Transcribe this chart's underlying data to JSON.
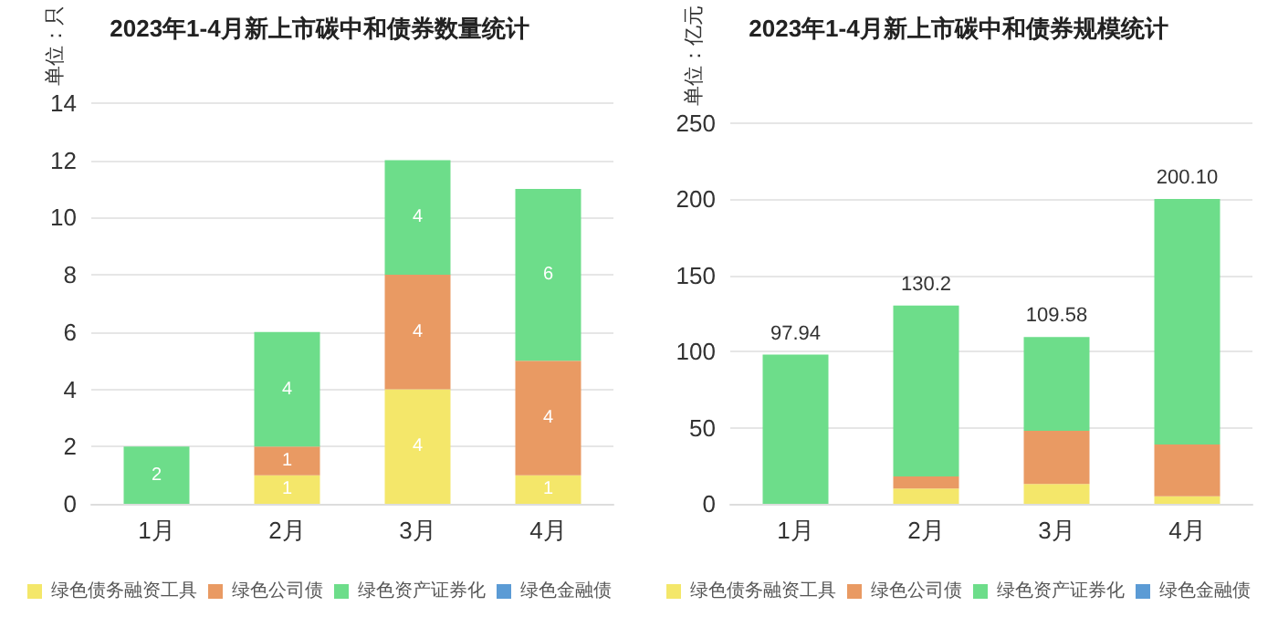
{
  "chart_data": [
    {
      "type": "bar",
      "title": "2023年1-4月新上市碳中和债券数量统计",
      "ylabel": "单位：只",
      "categories": [
        "1月",
        "2月",
        "3月",
        "4月"
      ],
      "stacked": true,
      "ylim": [
        0,
        14
      ],
      "yticks": [
        0,
        2,
        4,
        6,
        8,
        10,
        12,
        14
      ],
      "grid": "y",
      "legend": "bottom",
      "series": [
        {
          "name": "绿色债务融资工具",
          "color": "#f4e76a",
          "values": [
            0,
            1,
            4,
            1
          ],
          "value_labels": [
            null,
            "1",
            "4",
            "1"
          ]
        },
        {
          "name": "绿色公司债",
          "color": "#e99a63",
          "values": [
            0,
            1,
            4,
            4
          ],
          "value_labels": [
            null,
            "1",
            "4",
            "4"
          ]
        },
        {
          "name": "绿色资产证券化",
          "color": "#6ddd8a",
          "values": [
            2,
            4,
            4,
            6
          ],
          "value_labels": [
            "2",
            "4",
            "4",
            "6"
          ]
        },
        {
          "name": "绿色金融债",
          "color": "#5b9bd5",
          "values": [
            0,
            0,
            0,
            0
          ]
        }
      ]
    },
    {
      "type": "bar",
      "title": "2023年1-4月新上市碳中和债券规模统计",
      "ylabel": "单位：亿元",
      "categories": [
        "1月",
        "2月",
        "3月",
        "4月"
      ],
      "stacked": true,
      "ylim": [
        0,
        250
      ],
      "yticks": [
        0,
        50,
        100,
        150,
        200,
        250
      ],
      "grid": "y",
      "legend": "bottom",
      "totals": [
        "97.94",
        "130.2",
        "109.58",
        "200.10"
      ],
      "series": [
        {
          "name": "绿色债务融资工具",
          "color": "#f4e76a",
          "values": [
            0,
            10,
            13,
            5
          ]
        },
        {
          "name": "绿色公司债",
          "color": "#e99a63",
          "values": [
            0,
            8,
            35,
            34
          ]
        },
        {
          "name": "绿色资产证券化",
          "color": "#6ddd8a",
          "values": [
            97.94,
            112.2,
            61.58,
            161.1
          ]
        },
        {
          "name": "绿色金融债",
          "color": "#5b9bd5",
          "values": [
            0,
            0,
            0,
            0
          ]
        }
      ]
    }
  ]
}
